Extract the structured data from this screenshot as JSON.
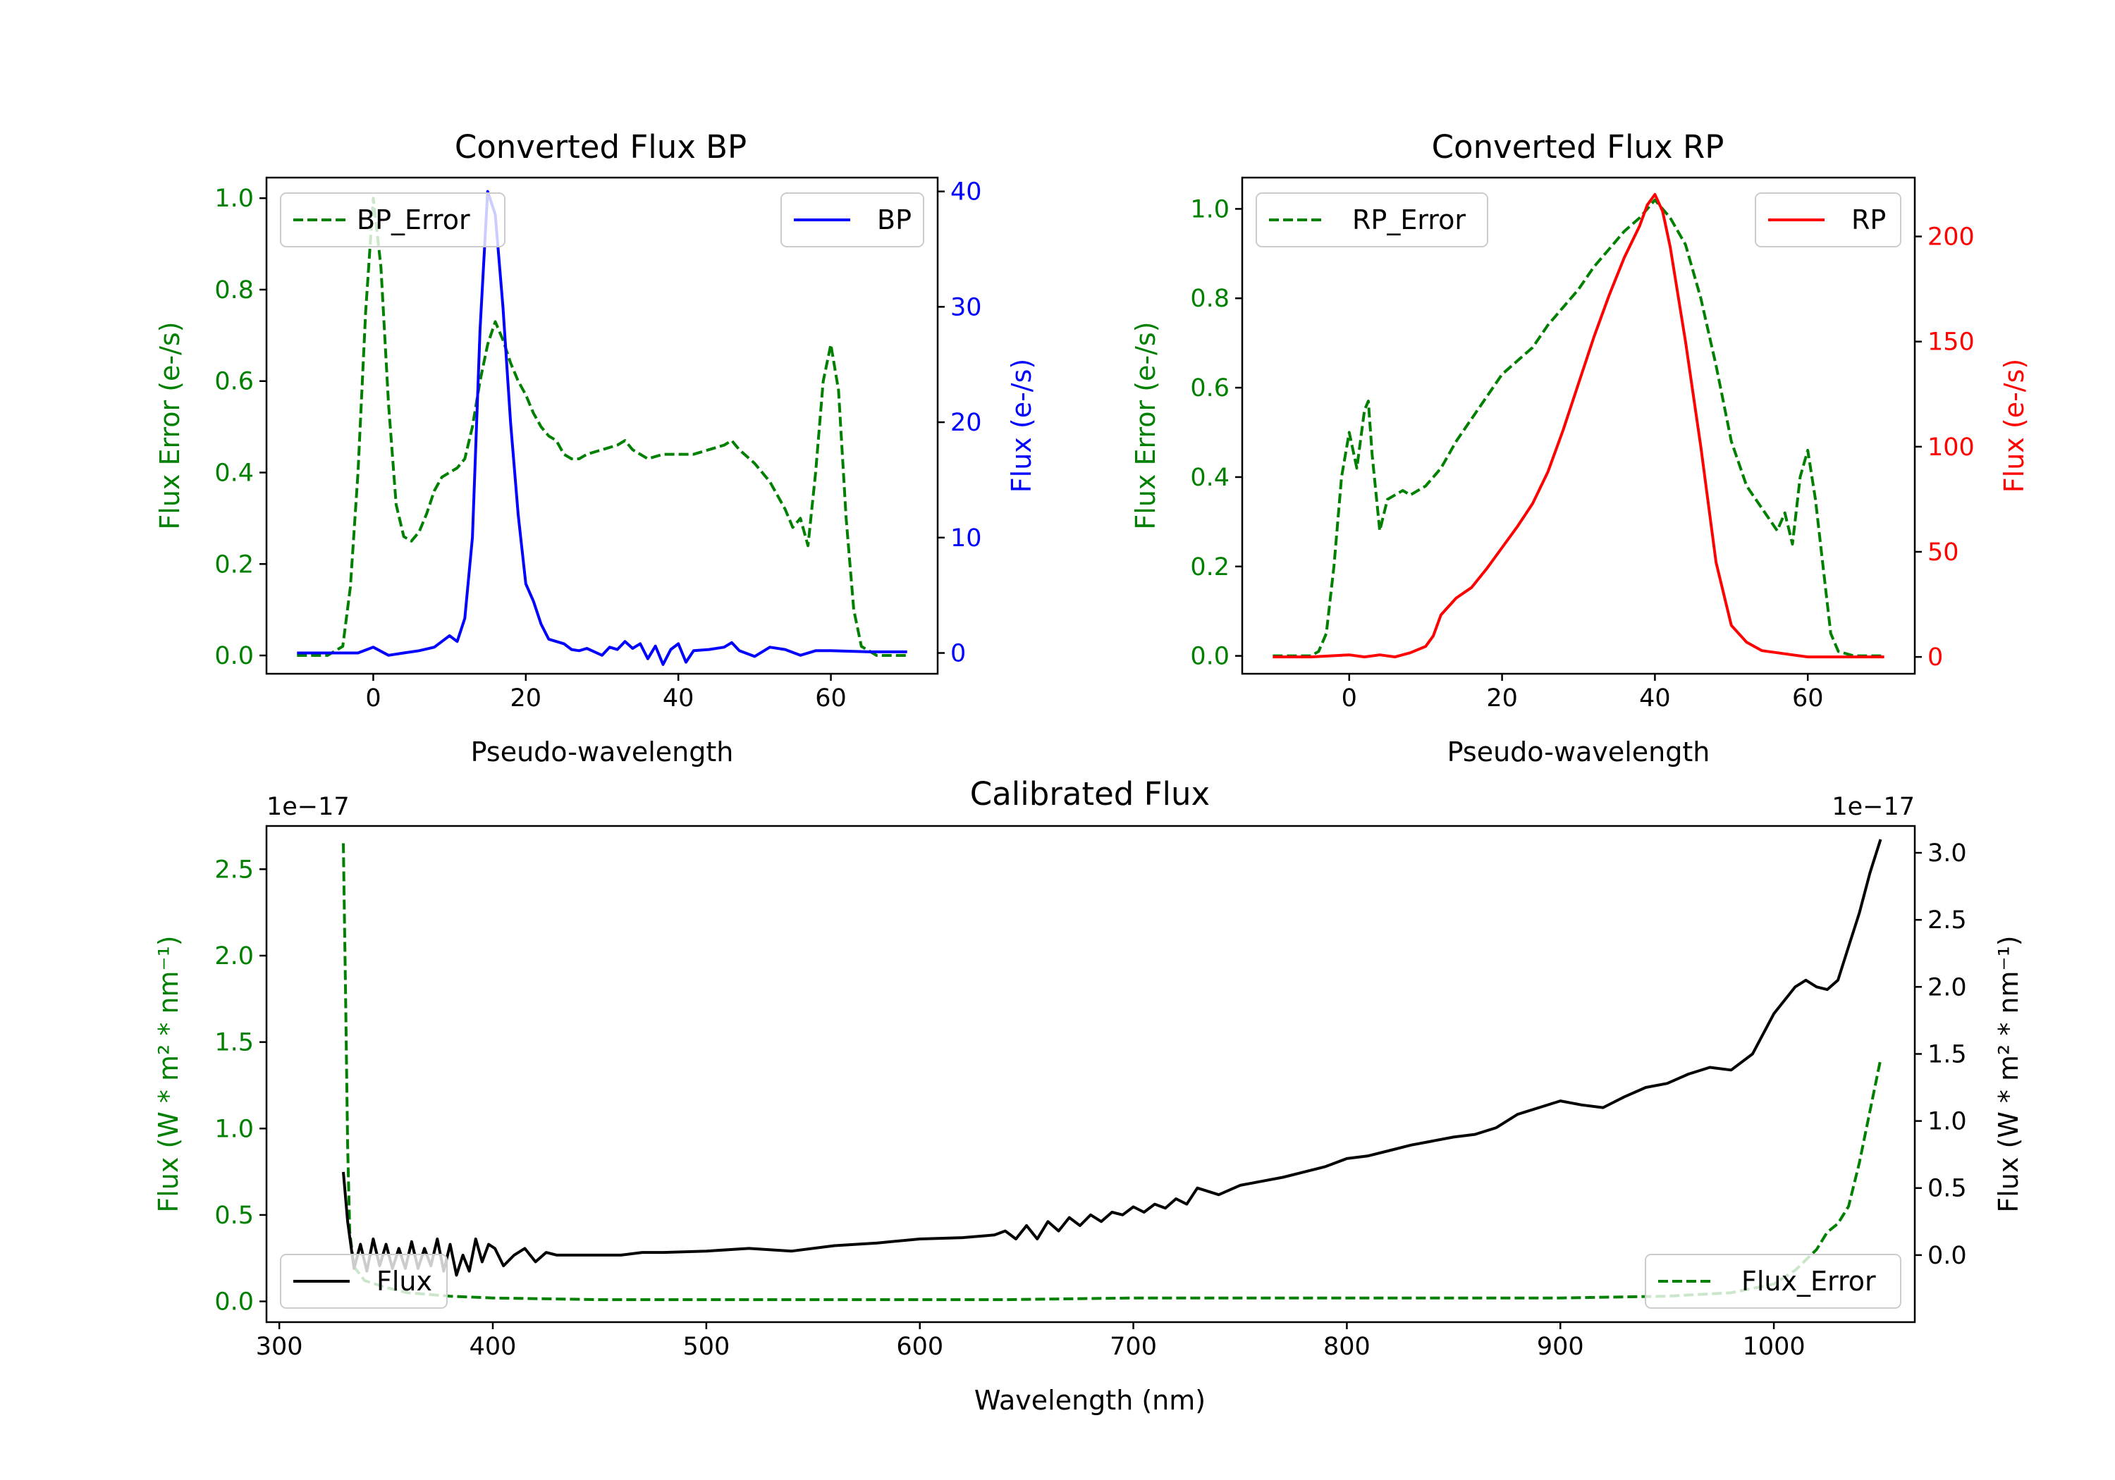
{
  "chart_data": [
    {
      "type": "line",
      "title": "Converted Flux BP",
      "xlabel": "Pseudo-wavelength",
      "xlim": [
        -14,
        74
      ],
      "xticks": [
        0,
        20,
        40,
        60
      ],
      "left_axis": {
        "label": "Flux Error (e-/s)",
        "lim": [
          -0.04,
          1.045
        ],
        "ticks": [
          0.0,
          0.2,
          0.4,
          0.6,
          0.8,
          1.0
        ],
        "color": "#008000"
      },
      "right_axis": {
        "label": "Flux (e-/s)",
        "lim": [
          -1.8,
          41.2
        ],
        "ticks": [
          0,
          10,
          20,
          30,
          40
        ],
        "color": "#0000ff"
      },
      "series": [
        {
          "name": "BP_Error",
          "axis": "left",
          "style": "dashed",
          "color": "#008000",
          "x": [
            -10,
            -6,
            -4,
            -3,
            -2,
            -1,
            0,
            1,
            2,
            3,
            4,
            5,
            6,
            7,
            8,
            9,
            10,
            11,
            12,
            13,
            14,
            15,
            16,
            17,
            18,
            19,
            20,
            21,
            22,
            23,
            24,
            25,
            26,
            27,
            28,
            30,
            32,
            33,
            34,
            36,
            38,
            40,
            42,
            44,
            46,
            47,
            48,
            50,
            52,
            54,
            55,
            56,
            57,
            58,
            59,
            60,
            61,
            62,
            63,
            64,
            66,
            70
          ],
          "y": [
            0.0,
            0.0,
            0.02,
            0.15,
            0.4,
            0.75,
            1.0,
            0.85,
            0.55,
            0.33,
            0.26,
            0.25,
            0.27,
            0.31,
            0.36,
            0.39,
            0.4,
            0.41,
            0.43,
            0.5,
            0.6,
            0.68,
            0.73,
            0.69,
            0.64,
            0.6,
            0.57,
            0.53,
            0.5,
            0.48,
            0.47,
            0.44,
            0.43,
            0.43,
            0.44,
            0.45,
            0.46,
            0.47,
            0.45,
            0.43,
            0.44,
            0.44,
            0.44,
            0.45,
            0.46,
            0.47,
            0.45,
            0.42,
            0.38,
            0.32,
            0.28,
            0.3,
            0.24,
            0.4,
            0.6,
            0.68,
            0.58,
            0.3,
            0.1,
            0.02,
            0.0,
            0.0
          ]
        },
        {
          "name": "BP",
          "axis": "right",
          "style": "solid",
          "color": "#0000ff",
          "x": [
            -10,
            -5,
            -2,
            0,
            2,
            4,
            6,
            8,
            10,
            11,
            12,
            13,
            14,
            15,
            16,
            17,
            18,
            19,
            20,
            21,
            22,
            23,
            24,
            25,
            26,
            27,
            28,
            29,
            30,
            31,
            32,
            33,
            34,
            35,
            36,
            37,
            38,
            39,
            40,
            41,
            42,
            44,
            46,
            47,
            48,
            50,
            52,
            54,
            56,
            58,
            60,
            65,
            70
          ],
          "y": [
            0,
            0,
            0,
            0.5,
            -0.2,
            0,
            0.2,
            0.5,
            1.5,
            1.0,
            3.0,
            10,
            28,
            40,
            38,
            30,
            20,
            12,
            6,
            4.5,
            2.5,
            1.2,
            1.0,
            0.8,
            0.3,
            0.2,
            0.4,
            0.1,
            -0.2,
            0.5,
            0.3,
            1.0,
            0.4,
            0.8,
            -0.5,
            0.6,
            -1.0,
            0.3,
            0.8,
            -0.8,
            0.2,
            0.3,
            0.5,
            0.9,
            0.2,
            -0.3,
            0.5,
            0.3,
            -0.2,
            0.2,
            0.2,
            0.1,
            0.1
          ]
        }
      ],
      "legend": [
        {
          "label": "BP_Error",
          "location": "upper left"
        },
        {
          "label": "BP",
          "location": "upper right"
        }
      ]
    },
    {
      "type": "line",
      "title": "Converted Flux RP",
      "xlabel": "Pseudo-wavelength",
      "xlim": [
        -14,
        74
      ],
      "xticks": [
        0,
        20,
        40,
        60
      ],
      "left_axis": {
        "label": "Flux Error (e-/s)",
        "lim": [
          -0.04,
          1.07
        ],
        "ticks": [
          0.0,
          0.2,
          0.4,
          0.6,
          0.8,
          1.0
        ],
        "color": "#008000"
      },
      "right_axis": {
        "label": "Flux (e-/s)",
        "lim": [
          -8,
          228
        ],
        "ticks": [
          0,
          50,
          100,
          150,
          200
        ],
        "color": "#ff0000"
      },
      "series": [
        {
          "name": "RP_Error",
          "axis": "left",
          "style": "dashed",
          "color": "#008000",
          "x": [
            -10,
            -5,
            -4,
            -3,
            -2,
            -1,
            0,
            1,
            2,
            2.5,
            3,
            4,
            5,
            6,
            7,
            8,
            10,
            12,
            14,
            16,
            18,
            20,
            22,
            24,
            26,
            28,
            30,
            32,
            34,
            36,
            38,
            39,
            40,
            41,
            42,
            44,
            46,
            48,
            50,
            52,
            54,
            56,
            57,
            58,
            59,
            60,
            61,
            62,
            63,
            64,
            66,
            70
          ],
          "y": [
            0,
            0,
            0.01,
            0.05,
            0.2,
            0.4,
            0.5,
            0.42,
            0.55,
            0.57,
            0.45,
            0.28,
            0.35,
            0.36,
            0.37,
            0.36,
            0.38,
            0.42,
            0.48,
            0.53,
            0.58,
            0.63,
            0.66,
            0.69,
            0.74,
            0.78,
            0.82,
            0.87,
            0.91,
            0.95,
            0.98,
            1.0,
            1.02,
            1.0,
            0.98,
            0.92,
            0.8,
            0.65,
            0.48,
            0.38,
            0.33,
            0.28,
            0.32,
            0.25,
            0.4,
            0.46,
            0.35,
            0.2,
            0.05,
            0.01,
            0,
            0
          ]
        },
        {
          "name": "RP",
          "axis": "right",
          "style": "solid",
          "color": "#ff0000",
          "x": [
            -10,
            -5,
            0,
            2,
            4,
            6,
            8,
            10,
            11,
            12,
            14,
            16,
            18,
            20,
            22,
            24,
            26,
            28,
            30,
            32,
            34,
            36,
            38,
            39,
            40,
            41,
            42,
            44,
            46,
            48,
            50,
            52,
            54,
            56,
            58,
            60,
            65,
            70
          ],
          "y": [
            0,
            0,
            1,
            0,
            1,
            0,
            2,
            5,
            10,
            20,
            28,
            33,
            42,
            52,
            62,
            73,
            88,
            108,
            130,
            152,
            172,
            190,
            205,
            215,
            220,
            212,
            195,
            150,
            100,
            45,
            15,
            7,
            3,
            2,
            1,
            0,
            0,
            0
          ]
        }
      ],
      "legend": [
        {
          "label": "RP_Error",
          "location": "upper left"
        },
        {
          "label": "RP",
          "location": "upper right"
        }
      ]
    },
    {
      "type": "line",
      "title": "Calibrated Flux",
      "xlabel": "Wavelength (nm)",
      "xlim": [
        294,
        1066
      ],
      "xticks": [
        300,
        400,
        500,
        600,
        700,
        800,
        900,
        1000
      ],
      "left_axis": {
        "label": "Flux (W * m² * nm⁻¹)",
        "lim": [
          -0.12,
          2.75
        ],
        "ticks": [
          0.0,
          0.5,
          1.0,
          1.5,
          2.0,
          2.5
        ],
        "tick_labels": [
          "0.0",
          "0.5",
          "1.0",
          "1.5",
          "2.0",
          "2.5"
        ],
        "offset_text": "1e−17",
        "color": "#008000"
      },
      "right_axis": {
        "label": "Flux (W * m² * nm⁻¹)",
        "lim": [
          -0.5,
          3.2
        ],
        "ticks": [
          0.0,
          0.5,
          1.0,
          1.5,
          2.0,
          2.5,
          3.0
        ],
        "tick_labels": [
          "0.0",
          "0.5",
          "1.0",
          "1.5",
          "2.0",
          "2.5",
          "3.0"
        ],
        "offset_text": "1e−17",
        "color": "#000000"
      },
      "series": [
        {
          "name": "Flux_Error",
          "axis": "left",
          "style": "dashed",
          "color": "#008000",
          "x": [
            330,
            331,
            332,
            333,
            335,
            340,
            350,
            360,
            380,
            400,
            450,
            500,
            600,
            640,
            700,
            800,
            900,
            950,
            980,
            1000,
            1010,
            1020,
            1025,
            1030,
            1035,
            1040,
            1045,
            1050
          ],
          "y": [
            2.65,
            1.8,
            0.9,
            0.4,
            0.2,
            0.12,
            0.08,
            0.05,
            0.03,
            0.02,
            0.01,
            0.01,
            0.01,
            0.01,
            0.02,
            0.02,
            0.02,
            0.03,
            0.05,
            0.1,
            0.18,
            0.3,
            0.4,
            0.45,
            0.55,
            0.8,
            1.1,
            1.4
          ]
        },
        {
          "name": "Flux",
          "axis": "right",
          "style": "solid",
          "color": "#000000",
          "x": [
            330,
            332,
            335,
            338,
            341,
            344,
            347,
            350,
            353,
            356,
            359,
            362,
            365,
            368,
            371,
            374,
            377,
            380,
            383,
            386,
            389,
            392,
            395,
            398,
            401,
            405,
            410,
            415,
            420,
            425,
            430,
            440,
            450,
            460,
            470,
            480,
            500,
            520,
            540,
            560,
            580,
            600,
            620,
            635,
            640,
            645,
            650,
            655,
            660,
            665,
            670,
            675,
            680,
            685,
            690,
            695,
            700,
            705,
            710,
            715,
            720,
            725,
            730,
            740,
            750,
            760,
            770,
            780,
            790,
            800,
            810,
            820,
            830,
            840,
            850,
            860,
            870,
            880,
            890,
            900,
            910,
            920,
            930,
            940,
            950,
            960,
            970,
            980,
            990,
            1000,
            1010,
            1015,
            1020,
            1025,
            1030,
            1035,
            1040,
            1045,
            1050
          ],
          "y": [
            0.62,
            0.25,
            -0.1,
            0.08,
            -0.12,
            0.12,
            -0.08,
            0.08,
            -0.1,
            0.05,
            -0.1,
            0.1,
            -0.1,
            0.05,
            -0.08,
            0.12,
            -0.12,
            0.08,
            -0.15,
            0.0,
            -0.12,
            0.12,
            -0.05,
            0.08,
            0.05,
            -0.08,
            0.0,
            0.05,
            -0.05,
            0.02,
            0.0,
            0.0,
            0.0,
            0.0,
            0.02,
            0.02,
            0.03,
            0.05,
            0.03,
            0.07,
            0.09,
            0.12,
            0.13,
            0.15,
            0.18,
            0.12,
            0.22,
            0.12,
            0.25,
            0.18,
            0.28,
            0.22,
            0.3,
            0.25,
            0.32,
            0.3,
            0.36,
            0.32,
            0.38,
            0.35,
            0.42,
            0.38,
            0.5,
            0.45,
            0.52,
            0.55,
            0.58,
            0.62,
            0.66,
            0.72,
            0.74,
            0.78,
            0.82,
            0.85,
            0.88,
            0.9,
            0.95,
            1.05,
            1.1,
            1.15,
            1.12,
            1.1,
            1.18,
            1.25,
            1.28,
            1.35,
            1.4,
            1.38,
            1.5,
            1.8,
            2.0,
            2.05,
            2.0,
            1.98,
            2.05,
            2.3,
            2.55,
            2.85,
            3.1
          ]
        }
      ],
      "legend": [
        {
          "label": "Flux",
          "location": "lower left"
        },
        {
          "label": "Flux_Error",
          "location": "lower right"
        }
      ]
    }
  ]
}
